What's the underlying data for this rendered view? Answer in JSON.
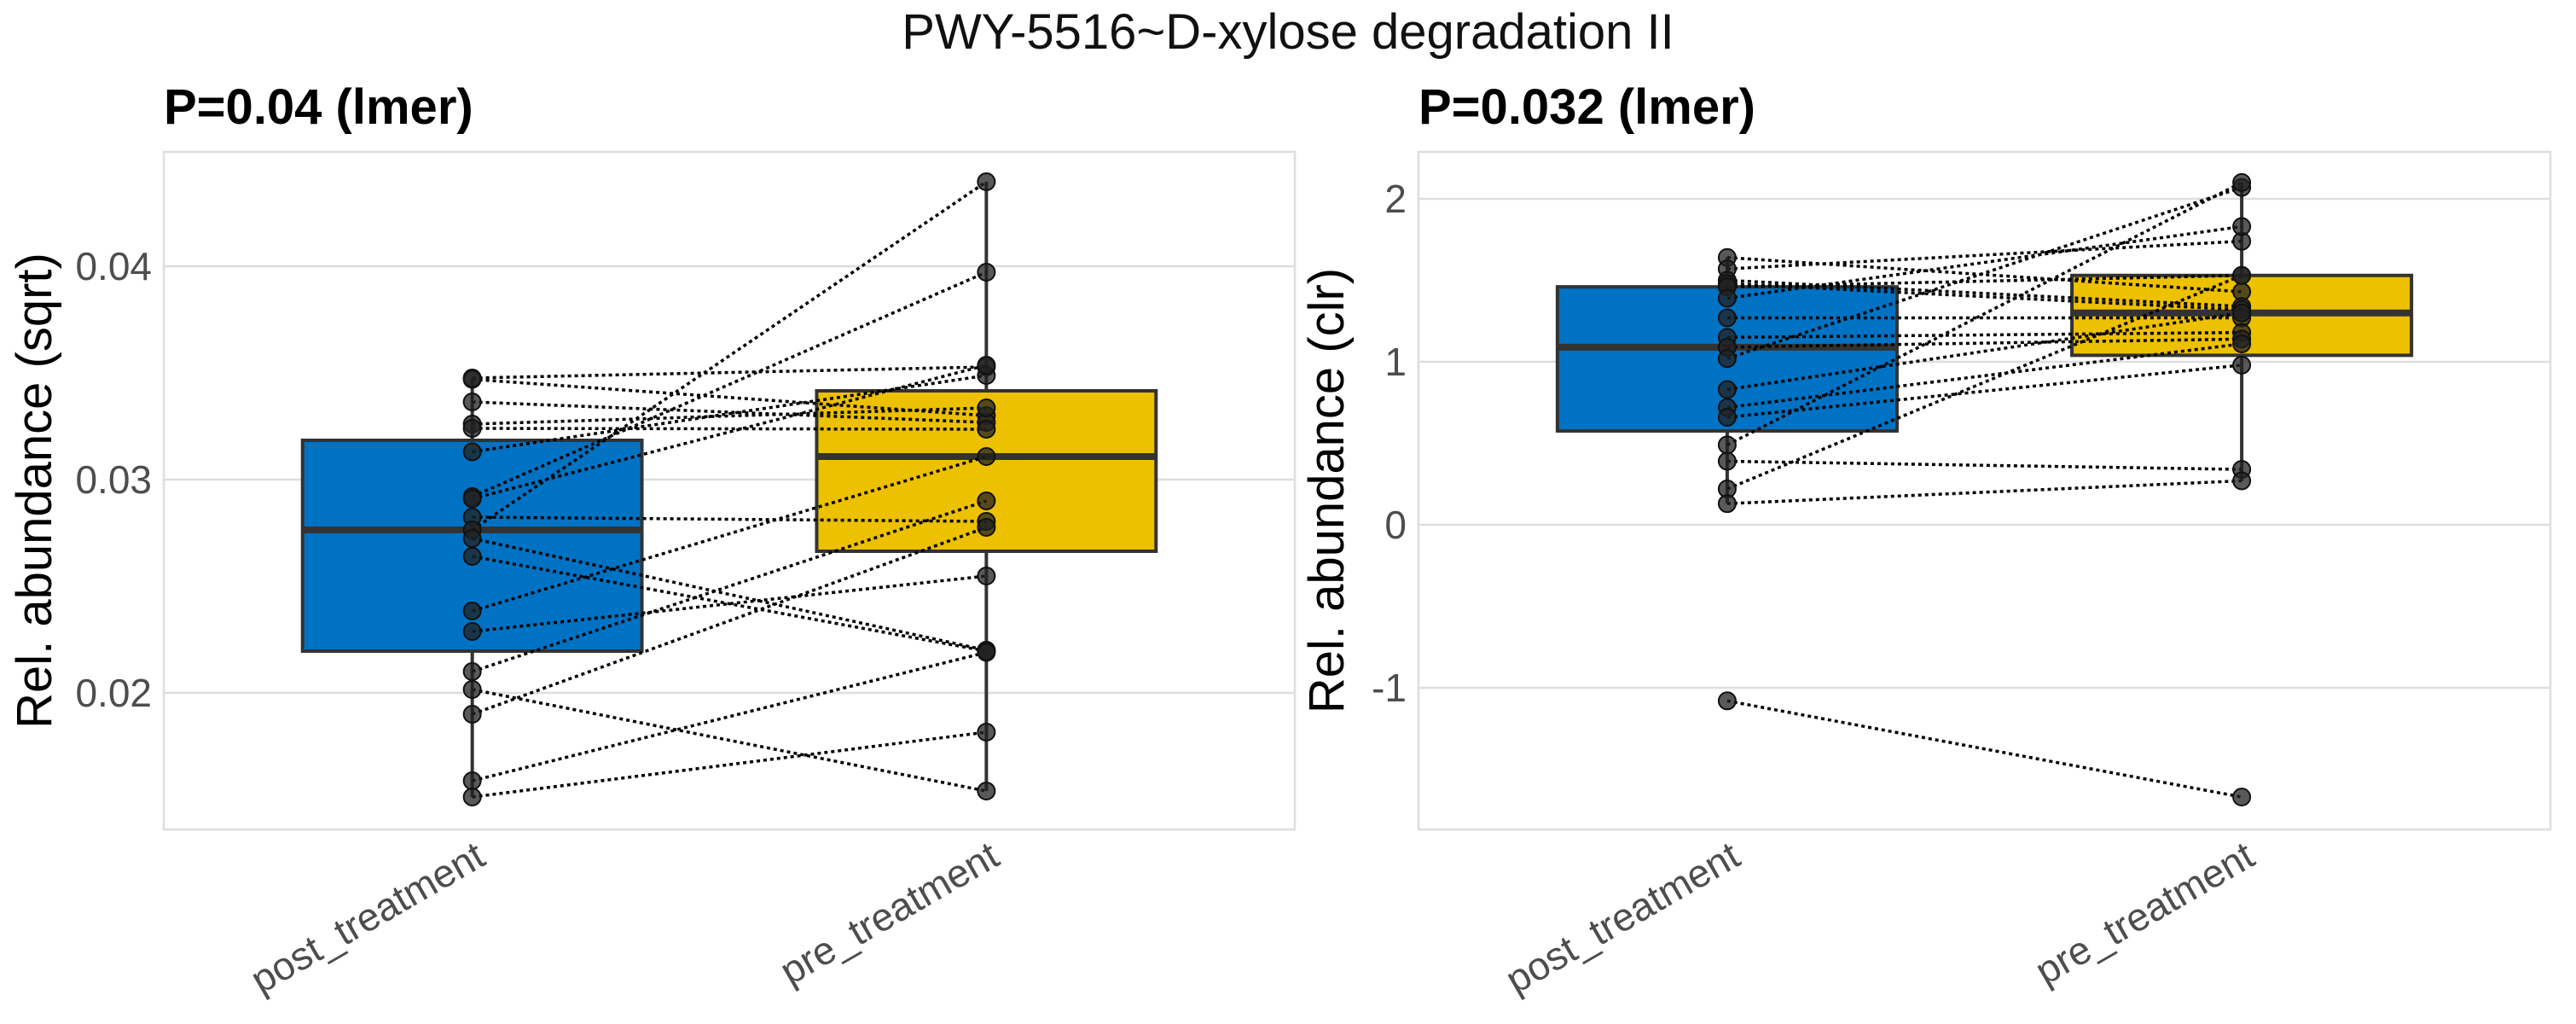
{
  "title": "PWY-5516~D-xylose degradation II",
  "colors": {
    "post_fill": "#0072C3",
    "pre_fill": "#EDC000",
    "grid": "#DEDEDE",
    "border": "#DEDEDE",
    "box_stroke": "#333333",
    "point": "#222222",
    "tick_text": "#4D4D4D"
  },
  "chart_data": [
    {
      "type": "box",
      "title": "P=0.04 (lmer)",
      "xlabel": "",
      "ylabel": "Rel. abundance (sqrt)",
      "categories": [
        "post_treatment",
        "pre_treatment"
      ],
      "ylim": [
        0.0136,
        0.04536
      ],
      "yticks": [
        0.02,
        0.03,
        0.04
      ],
      "ytick_labels": [
        "0.02",
        "0.03",
        "0.04"
      ],
      "grid": true,
      "boxes": [
        {
          "category": "post_treatment",
          "q1": 0.02196,
          "median": 0.02764,
          "q3": 0.03184,
          "whisker_low": 0.01512,
          "whisker_high": 0.03476
        },
        {
          "category": "pre_treatment",
          "q1": 0.02664,
          "median": 0.03108,
          "q3": 0.03416,
          "whisker_low": 0.0154,
          "whisker_high": 0.04396
        }
      ],
      "pairs": [
        [
          0.03476,
          0.03528
        ],
        [
          0.0347,
          0.033
        ],
        [
          0.03364,
          0.03268
        ],
        [
          0.0326,
          0.03336
        ],
        [
          0.0324,
          0.03236
        ],
        [
          0.0313,
          0.03488
        ],
        [
          0.0292,
          0.03972
        ],
        [
          0.0291,
          0.03536
        ],
        [
          0.02824,
          0.02804
        ],
        [
          0.02764,
          0.04396
        ],
        [
          0.02724,
          0.022
        ],
        [
          0.0264,
          0.02196
        ],
        [
          0.02384,
          0.03108
        ],
        [
          0.02288,
          0.02548
        ],
        [
          0.021,
          0.029
        ],
        [
          0.02016,
          0.0154
        ],
        [
          0.019,
          0.02776
        ],
        [
          0.01588,
          0.0219
        ],
        [
          0.01512,
          0.01816
        ]
      ]
    },
    {
      "type": "box",
      "title": "P=0.032 (lmer)",
      "xlabel": "",
      "ylabel": "Rel. abundance (clr)",
      "categories": [
        "post_treatment",
        "pre_treatment"
      ],
      "ylim": [
        -1.869,
        2.288
      ],
      "yticks": [
        -1,
        0,
        1,
        2
      ],
      "ytick_labels": [
        "-1",
        "0",
        "1",
        "2"
      ],
      "grid": true,
      "boxes": [
        {
          "category": "post_treatment",
          "q1": 0.576,
          "median": 1.09,
          "q3": 1.46,
          "whisker_low": 0.13,
          "whisker_high": 1.64
        },
        {
          "category": "pre_treatment",
          "q1": 1.04,
          "median": 1.3,
          "q3": 1.53,
          "whisker_low": 0.27,
          "whisker_high": 2.1
        }
      ],
      "pairs": [
        [
          1.64,
          1.43
        ],
        [
          1.57,
          1.74
        ],
        [
          1.5,
          1.34
        ],
        [
          1.48,
          1.32
        ],
        [
          1.46,
          1.53
        ],
        [
          1.39,
          1.83
        ],
        [
          1.27,
          1.27
        ],
        [
          1.15,
          1.18
        ],
        [
          1.09,
          1.14
        ],
        [
          1.02,
          2.07
        ],
        [
          0.83,
          1.3
        ],
        [
          0.72,
          1.11
        ],
        [
          0.66,
          0.98
        ],
        [
          0.49,
          2.1
        ],
        [
          0.39,
          0.34
        ],
        [
          0.22,
          1.53
        ],
        [
          0.13,
          0.27
        ],
        [
          -1.08,
          -1.67
        ]
      ]
    }
  ]
}
